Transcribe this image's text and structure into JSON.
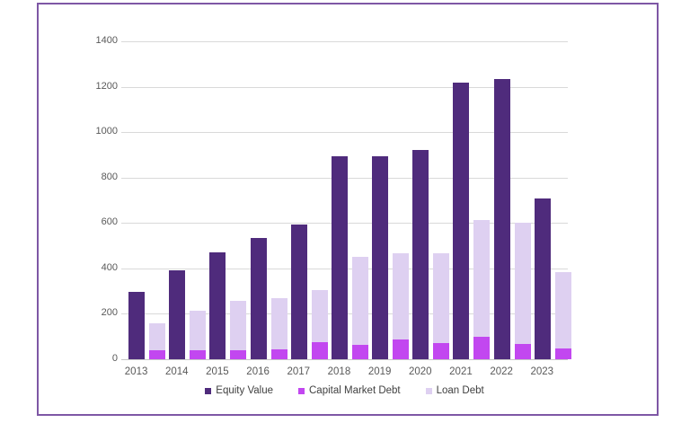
{
  "window": {
    "title": "",
    "background_color": "#FFFFFF",
    "frame_border_color": "#7E57A5"
  },
  "colors": {
    "equity_value": "#4F2B7C",
    "capital_market_debt": "#C247F0",
    "loan_debt": "#DED0F1",
    "gridline": "#D9D9D9",
    "axis_line": "#C6C6C6",
    "tick_label": "#595959",
    "legend_text": "#404040"
  },
  "legend": {
    "items": [
      {
        "label": "Equity Value",
        "color": "#4F2B7C"
      },
      {
        "label": "Capital Market Debt",
        "color": "#C247F0"
      },
      {
        "label": "Loan Debt",
        "color": "#DED0F1"
      }
    ]
  },
  "chart_data": {
    "type": "bar",
    "title": "",
    "xlabel": "",
    "ylabel": "",
    "categories": [
      "2013",
      "2014",
      "2015",
      "2016",
      "2017",
      "2018",
      "2019",
      "2020",
      "2021",
      "2022",
      "2023"
    ],
    "series": [
      {
        "name": "Equity Value",
        "color": "#4F2B7C",
        "bar": "standalone",
        "values": [
          295,
          393,
          470,
          533,
          595,
          893,
          895,
          922,
          1220,
          1235,
          708
        ]
      },
      {
        "name": "Capital Market Debt",
        "color": "#C247F0",
        "bar": "stacked-bottom",
        "values": [
          40,
          38,
          40,
          44,
          75,
          62,
          88,
          70,
          100,
          68,
          47
        ]
      },
      {
        "name": "Loan Debt",
        "color": "#DED0F1",
        "bar": "stacked-top",
        "values": [
          120,
          177,
          218,
          224,
          230,
          390,
          377,
          395,
          515,
          532,
          338
        ]
      }
    ],
    "stacked_bar_totals": [
      160,
      215,
      258,
      268,
      305,
      452,
      465,
      465,
      615,
      600,
      385
    ],
    "ylim": [
      0,
      1400
    ],
    "yticks": [
      0,
      200,
      400,
      600,
      800,
      1000,
      1200,
      1400
    ],
    "grid": true,
    "legend_position": "bottom"
  }
}
